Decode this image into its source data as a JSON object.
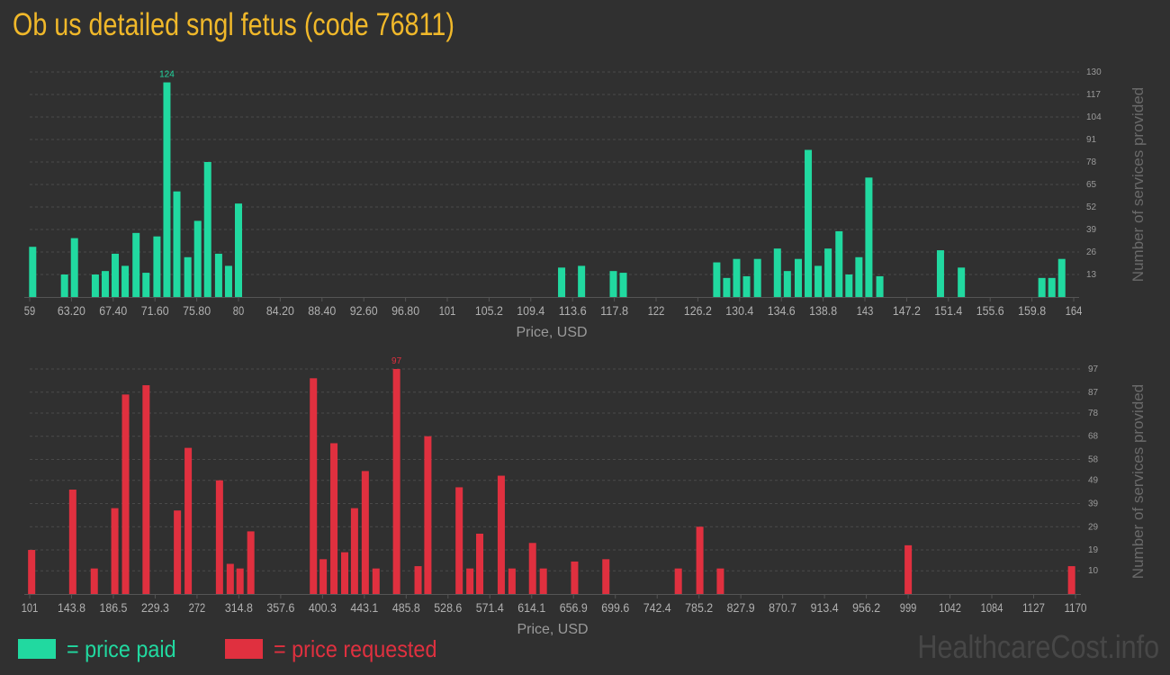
{
  "title": "Ob us detailed sngl fetus (code 76811)",
  "watermark": "HealthcareCost.info",
  "legend": {
    "paid_label": "= price paid",
    "requested_label": "= price requested",
    "paid_color": "#21d9a0",
    "requested_color": "#e0303f"
  },
  "chart_data": [
    {
      "type": "bar",
      "series": [
        {
          "name": "price paid",
          "color": "#21d9a0"
        }
      ],
      "xlabel": "Price, USD",
      "ylabel": "Number of services provided",
      "ylim": [
        0,
        130
      ],
      "yticks": [
        "13",
        "26",
        "39",
        "52",
        "65",
        "78",
        "91",
        "104",
        "117",
        "130"
      ],
      "xlim": [
        59,
        164
      ],
      "xticks": [
        "59",
        "63.20",
        "67.40",
        "71.60",
        "75.80",
        "80",
        "84.20",
        "88.40",
        "92.60",
        "96.80",
        "101",
        "105.2",
        "109.4",
        "113.6",
        "117.8",
        "122",
        "126.2",
        "130.4",
        "134.6",
        "138.8",
        "143",
        "147.2",
        "151.4",
        "155.6",
        "159.8",
        "164"
      ],
      "grid": true,
      "peak_label": "124",
      "bars": [
        {
          "x": 59.3,
          "y": 29
        },
        {
          "x": 62.5,
          "y": 13
        },
        {
          "x": 63.5,
          "y": 34
        },
        {
          "x": 65.6,
          "y": 13
        },
        {
          "x": 66.6,
          "y": 15
        },
        {
          "x": 67.6,
          "y": 25
        },
        {
          "x": 68.6,
          "y": 18
        },
        {
          "x": 69.7,
          "y": 37
        },
        {
          "x": 70.7,
          "y": 14
        },
        {
          "x": 71.8,
          "y": 35
        },
        {
          "x": 72.8,
          "y": 124
        },
        {
          "x": 73.8,
          "y": 61
        },
        {
          "x": 74.9,
          "y": 23
        },
        {
          "x": 75.9,
          "y": 44
        },
        {
          "x": 76.9,
          "y": 78
        },
        {
          "x": 78.0,
          "y": 25
        },
        {
          "x": 79.0,
          "y": 18
        },
        {
          "x": 80.0,
          "y": 54
        },
        {
          "x": 112.5,
          "y": 17
        },
        {
          "x": 114.5,
          "y": 18
        },
        {
          "x": 117.7,
          "y": 15
        },
        {
          "x": 118.7,
          "y": 14
        },
        {
          "x": 128.1,
          "y": 20
        },
        {
          "x": 129.1,
          "y": 11
        },
        {
          "x": 130.1,
          "y": 22
        },
        {
          "x": 131.1,
          "y": 12
        },
        {
          "x": 132.2,
          "y": 22
        },
        {
          "x": 134.2,
          "y": 28
        },
        {
          "x": 135.2,
          "y": 15
        },
        {
          "x": 136.3,
          "y": 22
        },
        {
          "x": 137.3,
          "y": 85
        },
        {
          "x": 138.3,
          "y": 18
        },
        {
          "x": 139.3,
          "y": 28
        },
        {
          "x": 140.4,
          "y": 38
        },
        {
          "x": 141.4,
          "y": 13
        },
        {
          "x": 142.4,
          "y": 23
        },
        {
          "x": 143.4,
          "y": 69
        },
        {
          "x": 144.5,
          "y": 12
        },
        {
          "x": 150.6,
          "y": 27
        },
        {
          "x": 152.7,
          "y": 17
        },
        {
          "x": 160.8,
          "y": 11
        },
        {
          "x": 161.8,
          "y": 11
        },
        {
          "x": 162.8,
          "y": 22
        }
      ]
    },
    {
      "type": "bar",
      "series": [
        {
          "name": "price requested",
          "color": "#e0303f"
        }
      ],
      "xlabel": "Price, USD",
      "ylabel": "Number of services provided",
      "ylim": [
        0,
        97
      ],
      "yticks": [
        "10",
        "19",
        "29",
        "39",
        "49",
        "58",
        "68",
        "78",
        "87",
        "97"
      ],
      "xlim": [
        101,
        1170
      ],
      "xticks": [
        "101",
        "143.8",
        "186.5",
        "229.3",
        "272",
        "314.8",
        "357.6",
        "400.3",
        "443.1",
        "485.8",
        "528.6",
        "571.4",
        "614.1",
        "656.9",
        "699.6",
        "742.4",
        "785.2",
        "827.9",
        "870.7",
        "913.4",
        "956.2",
        "999",
        "1042",
        "1084",
        "1127",
        "1170"
      ],
      "grid": true,
      "peak_label": "97",
      "bars": [
        {
          "x": 103,
          "y": 19
        },
        {
          "x": 145,
          "y": 45
        },
        {
          "x": 167,
          "y": 11
        },
        {
          "x": 188,
          "y": 37
        },
        {
          "x": 199,
          "y": 86
        },
        {
          "x": 220,
          "y": 90
        },
        {
          "x": 252,
          "y": 36
        },
        {
          "x": 263,
          "y": 63
        },
        {
          "x": 295,
          "y": 49
        },
        {
          "x": 306,
          "y": 13
        },
        {
          "x": 316,
          "y": 11
        },
        {
          "x": 327,
          "y": 27
        },
        {
          "x": 391,
          "y": 93
        },
        {
          "x": 401,
          "y": 15
        },
        {
          "x": 412,
          "y": 65
        },
        {
          "x": 423,
          "y": 18
        },
        {
          "x": 433,
          "y": 37
        },
        {
          "x": 444,
          "y": 53
        },
        {
          "x": 455,
          "y": 11
        },
        {
          "x": 476,
          "y": 97
        },
        {
          "x": 498,
          "y": 12
        },
        {
          "x": 508,
          "y": 68
        },
        {
          "x": 540,
          "y": 46
        },
        {
          "x": 551,
          "y": 11
        },
        {
          "x": 561,
          "y": 26
        },
        {
          "x": 583,
          "y": 51
        },
        {
          "x": 594,
          "y": 11
        },
        {
          "x": 615,
          "y": 22
        },
        {
          "x": 626,
          "y": 11
        },
        {
          "x": 658,
          "y": 14
        },
        {
          "x": 690,
          "y": 15
        },
        {
          "x": 764,
          "y": 11
        },
        {
          "x": 786,
          "y": 29
        },
        {
          "x": 807,
          "y": 11
        },
        {
          "x": 999,
          "y": 21
        },
        {
          "x": 1166,
          "y": 12
        }
      ]
    }
  ]
}
